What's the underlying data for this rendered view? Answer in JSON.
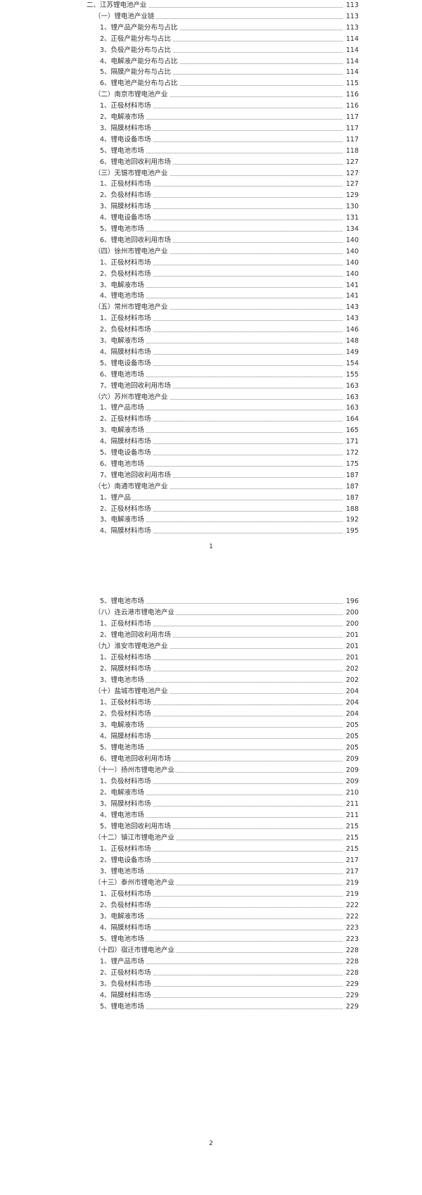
{
  "pages": [
    {
      "page_number": "1",
      "entries": [
        {
          "level": 0,
          "title": "二、江苏锂电池产业",
          "page": "113"
        },
        {
          "level": 1,
          "title": "（一）锂电池产业链",
          "page": "113"
        },
        {
          "level": 2,
          "title": "1、锂产品产能分布与占比",
          "page": "113"
        },
        {
          "level": 2,
          "title": "2、正极产能分布与占比",
          "page": "114"
        },
        {
          "level": 2,
          "title": "3、负极产能分布与占比",
          "page": "114"
        },
        {
          "level": 2,
          "title": "4、电解液产能分布与占比",
          "page": "114"
        },
        {
          "level": 2,
          "title": "5、隔膜产能分布与占比",
          "page": "114"
        },
        {
          "level": 2,
          "title": "6、锂电池产能分布与占比",
          "page": "115"
        },
        {
          "level": 1,
          "title": "（二）南京市锂电池产业",
          "page": "116"
        },
        {
          "level": 2,
          "title": "1、正极材料市场",
          "page": "116"
        },
        {
          "level": 2,
          "title": "2、电解液市场",
          "page": "117"
        },
        {
          "level": 2,
          "title": "3、隔膜材料市场",
          "page": "117"
        },
        {
          "level": 2,
          "title": "4、锂电设备市场",
          "page": "117"
        },
        {
          "level": 2,
          "title": "5、锂电池市场",
          "page": "118"
        },
        {
          "level": 2,
          "title": "6、锂电池回收利用市场",
          "page": "127"
        },
        {
          "level": 1,
          "title": "（三）无锡市锂电池产业",
          "page": "127"
        },
        {
          "level": 2,
          "title": "1、正极材料市场",
          "page": "127"
        },
        {
          "level": 2,
          "title": "2、负极材料市场",
          "page": "129"
        },
        {
          "level": 2,
          "title": "3、隔膜材料市场",
          "page": "130"
        },
        {
          "level": 2,
          "title": "4、锂电设备市场",
          "page": "131"
        },
        {
          "level": 2,
          "title": "5、锂电池市场",
          "page": "134"
        },
        {
          "level": 2,
          "title": "6、锂电池回收利用市场",
          "page": "140"
        },
        {
          "level": 1,
          "title": "（四）徐州市锂电池产业",
          "page": "140"
        },
        {
          "level": 2,
          "title": "1、正极材料市场",
          "page": "140"
        },
        {
          "level": 2,
          "title": "2、负极材料市场",
          "page": "140"
        },
        {
          "level": 2,
          "title": "3、电解液市场",
          "page": "141"
        },
        {
          "level": 2,
          "title": "4、锂电池市场",
          "page": "141"
        },
        {
          "level": 1,
          "title": "（五）常州市锂电池产业",
          "page": "143"
        },
        {
          "level": 2,
          "title": "1、正极材料市场",
          "page": "143"
        },
        {
          "level": 2,
          "title": "2、负极材料市场",
          "page": "146"
        },
        {
          "level": 2,
          "title": "3、电解液市场",
          "page": "148"
        },
        {
          "level": 2,
          "title": "4、隔膜材料市场",
          "page": "149"
        },
        {
          "level": 2,
          "title": "5、锂电设备市场",
          "page": "154"
        },
        {
          "level": 2,
          "title": "6、锂电池市场",
          "page": "155"
        },
        {
          "level": 2,
          "title": "7、锂电池回收利用市场",
          "page": "163"
        },
        {
          "level": 1,
          "title": "（六）苏州市锂电池产业",
          "page": "163"
        },
        {
          "level": 2,
          "title": "1、锂产品市场",
          "page": "163"
        },
        {
          "level": 2,
          "title": "2、正极材料市场",
          "page": "164"
        },
        {
          "level": 2,
          "title": "3、电解液市场",
          "page": "165"
        },
        {
          "level": 2,
          "title": "4、隔膜材料市场",
          "page": "171"
        },
        {
          "level": 2,
          "title": "5、锂电设备市场",
          "page": "172"
        },
        {
          "level": 2,
          "title": "6、锂电池市场",
          "page": "175"
        },
        {
          "level": 2,
          "title": "7、锂电池回收利用市场",
          "page": "187"
        },
        {
          "level": 1,
          "title": "（七）南通市锂电池产业",
          "page": "187"
        },
        {
          "level": 2,
          "title": "1、锂产品",
          "page": "187"
        },
        {
          "level": 2,
          "title": "2、正极材料市场",
          "page": "188"
        },
        {
          "level": 2,
          "title": "3、电解液市场",
          "page": "192"
        },
        {
          "level": 2,
          "title": "4、隔膜材料市场",
          "page": "195"
        }
      ]
    },
    {
      "page_number": "2",
      "entries": [
        {
          "level": 2,
          "title": "5、锂电池市场",
          "page": "196"
        },
        {
          "level": 1,
          "title": "（八）连云港市锂电池产业",
          "page": "200"
        },
        {
          "level": 2,
          "title": "1、正极材料市场",
          "page": "200"
        },
        {
          "level": 2,
          "title": "2、锂电池回收利用市场",
          "page": "201"
        },
        {
          "level": 1,
          "title": "（九）淮安市锂电池产业",
          "page": "201"
        },
        {
          "level": 2,
          "title": "1、正极材料市场",
          "page": "201"
        },
        {
          "level": 2,
          "title": "2、隔膜材料市场",
          "page": "202"
        },
        {
          "level": 2,
          "title": "3、锂电池市场",
          "page": "202"
        },
        {
          "level": 1,
          "title": "（十）盐城市锂电池产业",
          "page": "204"
        },
        {
          "level": 2,
          "title": "1、正极材料市场",
          "page": "204"
        },
        {
          "level": 2,
          "title": "2、负极材料市场",
          "page": "204"
        },
        {
          "level": 2,
          "title": "3、电解液市场",
          "page": "205"
        },
        {
          "level": 2,
          "title": "4、隔膜材料市场",
          "page": "205"
        },
        {
          "level": 2,
          "title": "5、锂电池市场",
          "page": "205"
        },
        {
          "level": 2,
          "title": "6、锂电池回收利用市场",
          "page": "209"
        },
        {
          "level": 1,
          "title": "（十一）扬州市锂电池产业",
          "page": "209"
        },
        {
          "level": 2,
          "title": "1、负极材料市场",
          "page": "209"
        },
        {
          "level": 2,
          "title": "2、电解液市场",
          "page": "210"
        },
        {
          "level": 2,
          "title": "3、隔膜材料市场",
          "page": "211"
        },
        {
          "level": 2,
          "title": "4、锂电池市场",
          "page": "211"
        },
        {
          "level": 2,
          "title": "5、锂电池回收利用市场",
          "page": "215"
        },
        {
          "level": 1,
          "title": "（十二）镇江市锂电池产业",
          "page": "215"
        },
        {
          "level": 2,
          "title": "1、正极材料市场",
          "page": "215"
        },
        {
          "level": 2,
          "title": "2、锂电设备市场",
          "page": "217"
        },
        {
          "level": 2,
          "title": "3、锂电池市场",
          "page": "217"
        },
        {
          "level": 1,
          "title": "（十三）泰州市锂电池产业",
          "page": "219"
        },
        {
          "level": 2,
          "title": "1、正极材料市场",
          "page": "219"
        },
        {
          "level": 2,
          "title": "2、负极材料市场",
          "page": "222"
        },
        {
          "level": 2,
          "title": "3、电解液市场",
          "page": "222"
        },
        {
          "level": 2,
          "title": "4、隔膜材料市场",
          "page": "223"
        },
        {
          "level": 2,
          "title": "5、锂电池市场",
          "page": "223"
        },
        {
          "level": 1,
          "title": "（十四）宿迁市锂电池产业",
          "page": "228"
        },
        {
          "level": 2,
          "title": "1、锂产品市场",
          "page": "228"
        },
        {
          "level": 2,
          "title": "2、正极材料市场",
          "page": "228"
        },
        {
          "level": 2,
          "title": "3、负极材料市场",
          "page": "229"
        },
        {
          "level": 2,
          "title": "4、隔膜材料市场",
          "page": "229"
        },
        {
          "level": 2,
          "title": "5、锂电池市场",
          "page": "229"
        }
      ]
    }
  ]
}
